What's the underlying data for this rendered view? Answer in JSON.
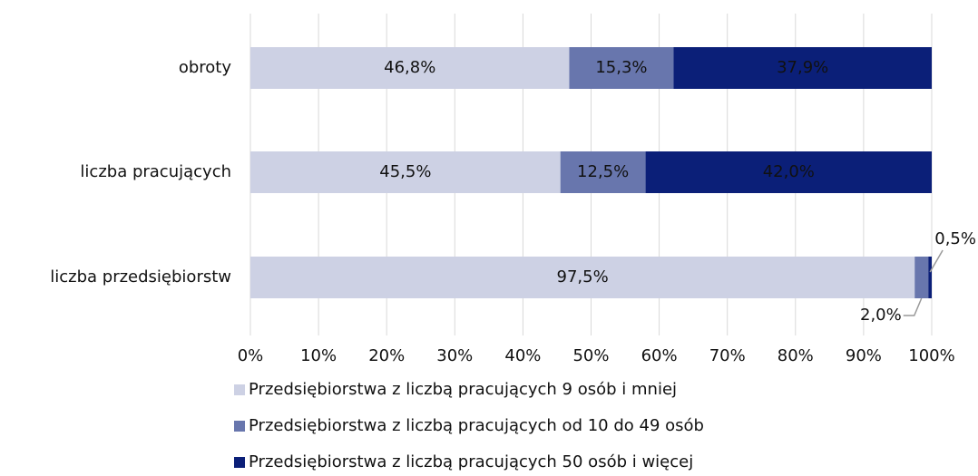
{
  "chart_data": {
    "type": "bar",
    "orientation": "horizontal",
    "stacked": true,
    "categories": [
      "obroty",
      "liczba pracujących",
      "liczba przedsiębiorstw"
    ],
    "series": [
      {
        "name": "Przedsiębiorstwa z liczbą pracujących 9 osób i mniej",
        "color": "#cdd1e4",
        "values": [
          46.8,
          45.5,
          97.5
        ],
        "value_labels": [
          "46,8%",
          "45,5%",
          "97,5%"
        ]
      },
      {
        "name": "Przedsiębiorstwa z liczbą pracujących od 10 do 49 osób",
        "color": "#6876ad",
        "values": [
          15.3,
          12.5,
          2.0
        ],
        "value_labels": [
          "15,3%",
          "12,5%",
          "2,0%"
        ]
      },
      {
        "name": "Przedsiębiorstwa z liczbą pracujących 50 osób i więcej",
        "color": "#0b1f78",
        "values": [
          37.9,
          42.0,
          0.5
        ],
        "value_labels": [
          "37,9%",
          "42,0%",
          "0,5%"
        ]
      }
    ],
    "xlim": [
      0,
      100
    ],
    "xticks": [
      {
        "value": 0,
        "label": "0%"
      },
      {
        "value": 10,
        "label": "10%"
      },
      {
        "value": 20,
        "label": "20%"
      },
      {
        "value": 30,
        "label": "30%"
      },
      {
        "value": 40,
        "label": "40%"
      },
      {
        "value": 50,
        "label": "50%"
      },
      {
        "value": 60,
        "label": "60%"
      },
      {
        "value": 70,
        "label": "70%"
      },
      {
        "value": 80,
        "label": "80%"
      },
      {
        "value": 90,
        "label": "90%"
      },
      {
        "value": 100,
        "label": "100%"
      }
    ],
    "grid": true,
    "legend": "bottom"
  }
}
